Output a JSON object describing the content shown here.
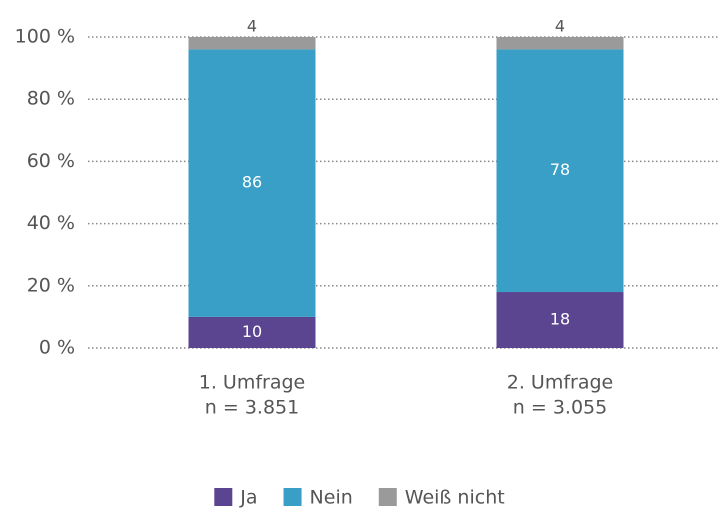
{
  "chart_data": {
    "type": "stacked_bar",
    "categories": [
      "1. Umfrage",
      "2. Umfrage"
    ],
    "sample_sizes": [
      "n = 3.851",
      "n = 3.055"
    ],
    "series": [
      {
        "name": "Ja",
        "color": "#5b4590",
        "values": [
          10,
          18
        ]
      },
      {
        "name": "Nein",
        "color": "#3a9fc6",
        "values": [
          86,
          78
        ]
      },
      {
        "name": "Weiß nicht",
        "color": "#9a9a9a",
        "values": [
          4,
          4
        ]
      }
    ],
    "ylim": [
      0,
      100
    ],
    "yticks": [
      {
        "value": 0,
        "label": "0 %"
      },
      {
        "value": 20,
        "label": "20 %"
      },
      {
        "value": 40,
        "label": "40 %"
      },
      {
        "value": 60,
        "label": "60 %"
      },
      {
        "value": 80,
        "label": "80 %"
      },
      {
        "value": 100,
        "label": "100 %"
      }
    ],
    "grid": true
  }
}
